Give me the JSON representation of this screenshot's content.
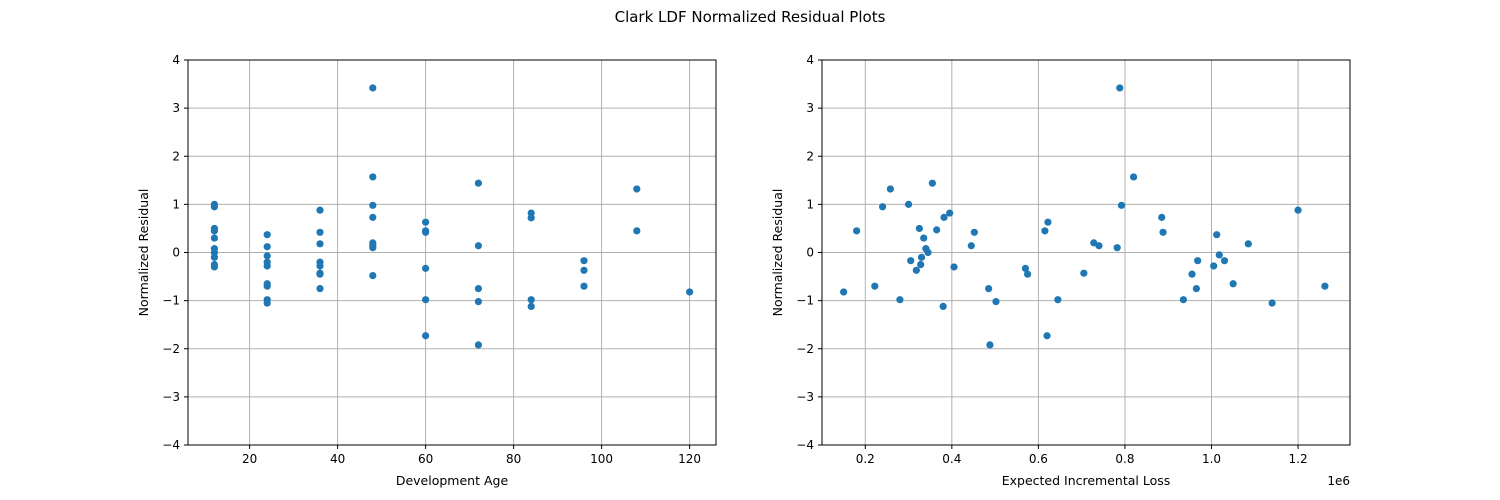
{
  "figure": {
    "title": "Clark LDF Normalized Residual Plots"
  },
  "chart_data": [
    {
      "type": "scatter",
      "xlabel": "Development Age",
      "ylabel": "Normalized Residual",
      "xlim": [
        6,
        126
      ],
      "ylim": [
        -4,
        4
      ],
      "xticks": [
        20,
        40,
        60,
        80,
        100,
        120
      ],
      "xtick_labels": [
        "20",
        "40",
        "60",
        "80",
        "100",
        "120"
      ],
      "yticks": [
        -4,
        -3,
        -2,
        -1,
        0,
        1,
        2,
        3,
        4
      ],
      "ytick_labels": [
        "−4",
        "−3",
        "−2",
        "−1",
        "0",
        "1",
        "2",
        "3",
        "4"
      ],
      "grid": true,
      "marker_color": "#1f77b4",
      "points": [
        [
          12,
          1.0
        ],
        [
          12,
          0.95
        ],
        [
          12,
          0.5
        ],
        [
          12,
          0.45
        ],
        [
          12,
          0.3
        ],
        [
          12,
          0.08
        ],
        [
          12,
          0.0
        ],
        [
          12,
          -0.1
        ],
        [
          12,
          -0.25
        ],
        [
          12,
          -0.3
        ],
        [
          24,
          0.37
        ],
        [
          24,
          0.12
        ],
        [
          24,
          -0.07
        ],
        [
          24,
          -0.2
        ],
        [
          24,
          -0.28
        ],
        [
          24,
          -0.65
        ],
        [
          24,
          -0.7
        ],
        [
          24,
          -0.98
        ],
        [
          24,
          -1.05
        ],
        [
          36,
          0.88
        ],
        [
          36,
          0.42
        ],
        [
          36,
          0.18
        ],
        [
          36,
          -0.2
        ],
        [
          36,
          -0.28
        ],
        [
          36,
          -0.43
        ],
        [
          36,
          -0.45
        ],
        [
          36,
          -0.75
        ],
        [
          48,
          3.42
        ],
        [
          48,
          1.57
        ],
        [
          48,
          0.98
        ],
        [
          48,
          0.73
        ],
        [
          48,
          0.2
        ],
        [
          48,
          0.15
        ],
        [
          48,
          0.1
        ],
        [
          48,
          -0.48
        ],
        [
          60,
          0.63
        ],
        [
          60,
          0.45
        ],
        [
          60,
          0.42
        ],
        [
          60,
          -0.33
        ],
        [
          60,
          -0.98
        ],
        [
          60,
          -1.73
        ],
        [
          72,
          1.44
        ],
        [
          72,
          0.14
        ],
        [
          72,
          -0.75
        ],
        [
          72,
          -1.02
        ],
        [
          72,
          -1.92
        ],
        [
          84,
          0.82
        ],
        [
          84,
          0.72
        ],
        [
          84,
          -0.98
        ],
        [
          84,
          -1.12
        ],
        [
          96,
          -0.17
        ],
        [
          96,
          -0.37
        ],
        [
          96,
          -0.7
        ],
        [
          108,
          1.32
        ],
        [
          108,
          0.45
        ],
        [
          120,
          -0.82
        ]
      ]
    },
    {
      "type": "scatter",
      "xlabel": "Expected Incremental Loss",
      "ylabel": "Normalized Residual",
      "x_offset_label": "1e6",
      "xlim": [
        0.1,
        1.32
      ],
      "ylim": [
        -4,
        4
      ],
      "xticks": [
        0.2,
        0.4,
        0.6,
        0.8,
        1.0,
        1.2
      ],
      "xtick_labels": [
        "0.2",
        "0.4",
        "0.6",
        "0.8",
        "1.0",
        "1.2"
      ],
      "yticks": [
        -4,
        -3,
        -2,
        -1,
        0,
        1,
        2,
        3,
        4
      ],
      "ytick_labels": [
        "−4",
        "−3",
        "−2",
        "−1",
        "0",
        "1",
        "2",
        "3",
        "4"
      ],
      "grid": true,
      "marker_color": "#1f77b4",
      "points": [
        [
          0.15,
          -0.82
        ],
        [
          0.18,
          0.45
        ],
        [
          0.222,
          -0.7
        ],
        [
          0.24,
          0.95
        ],
        [
          0.258,
          1.32
        ],
        [
          0.28,
          -0.98
        ],
        [
          0.3,
          1.0
        ],
        [
          0.305,
          -0.17
        ],
        [
          0.318,
          -0.37
        ],
        [
          0.325,
          0.5
        ],
        [
          0.328,
          -0.25
        ],
        [
          0.33,
          -0.1
        ],
        [
          0.335,
          0.3
        ],
        [
          0.34,
          0.08
        ],
        [
          0.345,
          0.0
        ],
        [
          0.355,
          1.44
        ],
        [
          0.365,
          0.47
        ],
        [
          0.38,
          -1.12
        ],
        [
          0.382,
          0.73
        ],
        [
          0.395,
          0.82
        ],
        [
          0.405,
          -0.3
        ],
        [
          0.445,
          0.14
        ],
        [
          0.452,
          0.42
        ],
        [
          0.485,
          -0.75
        ],
        [
          0.488,
          -1.92
        ],
        [
          0.502,
          -1.02
        ],
        [
          0.57,
          -0.33
        ],
        [
          0.575,
          -0.45
        ],
        [
          0.615,
          0.45
        ],
        [
          0.62,
          -1.73
        ],
        [
          0.622,
          0.63
        ],
        [
          0.645,
          -0.98
        ],
        [
          0.705,
          -0.43
        ],
        [
          0.728,
          0.2
        ],
        [
          0.74,
          0.14
        ],
        [
          0.782,
          0.1
        ],
        [
          0.788,
          3.42
        ],
        [
          0.792,
          0.98
        ],
        [
          0.82,
          1.57
        ],
        [
          0.885,
          0.73
        ],
        [
          0.888,
          0.42
        ],
        [
          0.935,
          -0.98
        ],
        [
          0.955,
          -0.45
        ],
        [
          0.965,
          -0.75
        ],
        [
          0.968,
          -0.17
        ],
        [
          1.005,
          -0.28
        ],
        [
          1.012,
          0.37
        ],
        [
          1.018,
          -0.05
        ],
        [
          1.03,
          -0.17
        ],
        [
          1.05,
          -0.65
        ],
        [
          1.085,
          0.18
        ],
        [
          1.14,
          -1.05
        ],
        [
          1.2,
          0.88
        ],
        [
          1.262,
          -0.7
        ]
      ]
    }
  ]
}
